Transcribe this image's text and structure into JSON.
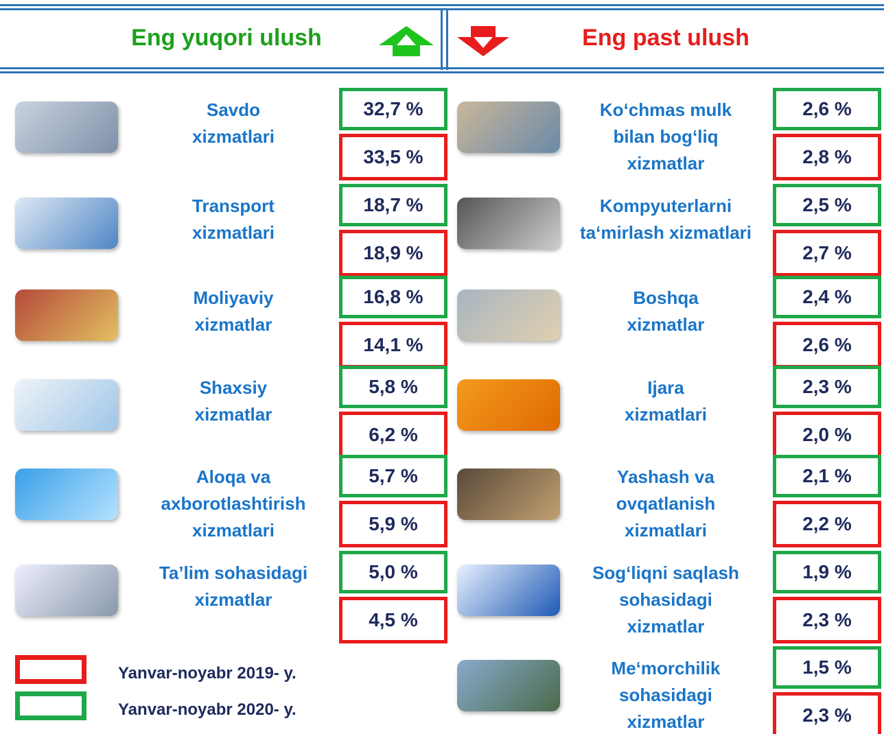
{
  "header": {
    "left_title": "Eng yuqori ulush",
    "right_title": "Eng past ulush"
  },
  "left": [
    {
      "label": [
        "Savdo",
        "xizmatlari"
      ],
      "v2020": "32,7 %",
      "v2019": "33,5 %"
    },
    {
      "label": [
        "Transport",
        "xizmatlari"
      ],
      "v2020": "18,7 %",
      "v2019": "18,9 %"
    },
    {
      "label": [
        "Moliyaviy",
        "xizmatlar"
      ],
      "v2020": "16,8 %",
      "v2019": "14,1 %"
    },
    {
      "label": [
        "Shaxsiy",
        "xizmatlar"
      ],
      "v2020": "5,8 %",
      "v2019": "6,2 %"
    },
    {
      "label": [
        "Aloqa va",
        "axborotlashtirish",
        "xizmatlari"
      ],
      "v2020": "5,7 %",
      "v2019": "5,9 %"
    },
    {
      "label": [
        "Ta’lim sohasidagi",
        "xizmatlar"
      ],
      "v2020": "5,0 %",
      "v2019": "4,5 %"
    }
  ],
  "right": [
    {
      "label": [
        "Ko‘chmas mulk",
        "bilan bog‘liq",
        "xizmatlar"
      ],
      "v2020": "2,6 %",
      "v2019": "2,8 %"
    },
    {
      "label": [
        "Kompyuterlarni",
        "ta‘mirlash xizmatlari"
      ],
      "v2020": "2,5 %",
      "v2019": "2,7 %"
    },
    {
      "label": [
        "Boshqa",
        "xizmatlar"
      ],
      "v2020": "2,4 %",
      "v2019": "2,6 %"
    },
    {
      "label": [
        "Ijara",
        "xizmatlari"
      ],
      "v2020": "2,3 %",
      "v2019": "2,0 %"
    },
    {
      "label": [
        "Yashash va",
        "ovqatlanish",
        "xizmatlari"
      ],
      "v2020": "2,1 %",
      "v2019": "2,2 %"
    },
    {
      "label": [
        "Sog‘liqni saqlash",
        "sohasidagi",
        "xizmatlar"
      ],
      "v2020": "1,9 %",
      "v2019": "2,3 %"
    },
    {
      "label": [
        "Me‘morchilik",
        "sohasidagi",
        "xizmatlar"
      ],
      "v2020": "1,5 %",
      "v2019": "2,3 %"
    }
  ],
  "legend": {
    "red": "Yanvar-noyabr 2019- y.",
    "green": "Yanvar-noyabr 2020- y."
  }
}
